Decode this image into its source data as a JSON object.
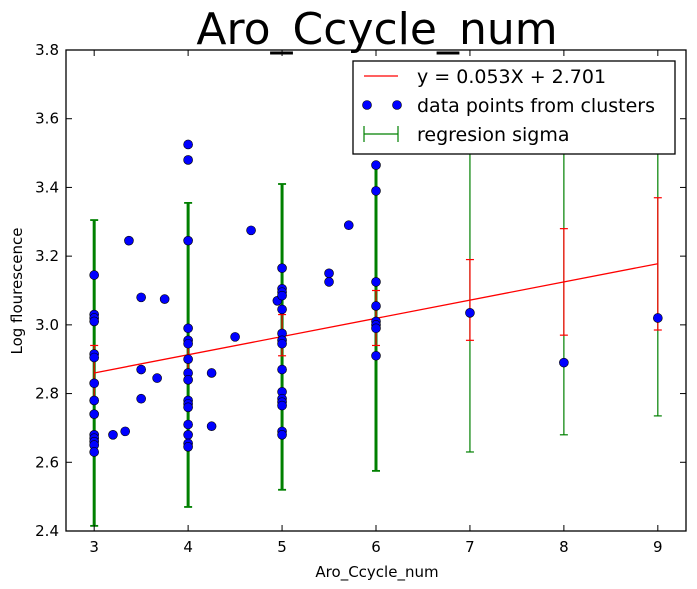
{
  "chart_data": {
    "type": "scatter",
    "title": "Aro_Ccycle_num",
    "xlabel": "Aro_Ccycle_num",
    "ylabel": "Log flourescence",
    "xlim": [
      2.7,
      9.3
    ],
    "ylim": [
      2.4,
      3.8
    ],
    "xticks": [
      "3",
      "4",
      "5",
      "6",
      "7",
      "8",
      "9"
    ],
    "yticks": [
      "2.4",
      "2.6",
      "2.8",
      "3.0",
      "3.2",
      "3.4",
      "3.6",
      "3.8"
    ],
    "grid": false,
    "legend_position": "top-right",
    "legend": {
      "fit_label": "y = 0.053X + 2.701",
      "points_label": "data points from clusters",
      "sigma_label": "regresion sigma"
    },
    "colors": {
      "fit": "#ff0000",
      "points": "#0000ff",
      "sigma": "#008000"
    },
    "regression": {
      "slope": 0.053,
      "intercept": 2.701,
      "x_range": [
        3,
        9
      ]
    },
    "regression_error": [
      {
        "x": 3,
        "low": 2.78,
        "high": 2.94
      },
      {
        "x": 4,
        "low": 2.86,
        "high": 2.96
      },
      {
        "x": 5,
        "low": 2.91,
        "high": 3.03
      },
      {
        "x": 6,
        "low": 2.94,
        "high": 3.1
      },
      {
        "x": 7,
        "low": 2.955,
        "high": 3.19
      },
      {
        "x": 8,
        "low": 2.97,
        "high": 3.28
      },
      {
        "x": 9,
        "low": 2.985,
        "high": 3.37
      }
    ],
    "sigma_bars": [
      {
        "x": 3,
        "low": 2.415,
        "high": 3.305,
        "thick": true
      },
      {
        "x": 4,
        "low": 2.47,
        "high": 3.355,
        "thick": true
      },
      {
        "x": 5,
        "low": 2.52,
        "high": 3.41,
        "thick": true
      },
      {
        "x": 6,
        "low": 2.575,
        "high": 3.465,
        "thick": true
      },
      {
        "x": 7,
        "low": 2.63,
        "high": 3.52,
        "thick": false
      },
      {
        "x": 8,
        "low": 2.68,
        "high": 3.57,
        "thick": false
      },
      {
        "x": 9,
        "low": 2.735,
        "high": 3.625,
        "thick": false
      }
    ],
    "points": [
      {
        "x": 3,
        "y": 3.145
      },
      {
        "x": 3,
        "y": 3.03
      },
      {
        "x": 3,
        "y": 3.02
      },
      {
        "x": 3,
        "y": 3.01
      },
      {
        "x": 3,
        "y": 2.915
      },
      {
        "x": 3,
        "y": 2.905
      },
      {
        "x": 3,
        "y": 2.83
      },
      {
        "x": 3,
        "y": 2.78
      },
      {
        "x": 3,
        "y": 2.74
      },
      {
        "x": 3,
        "y": 2.68
      },
      {
        "x": 3,
        "y": 2.67
      },
      {
        "x": 3,
        "y": 2.66
      },
      {
        "x": 3,
        "y": 2.65
      },
      {
        "x": 3,
        "y": 2.63
      },
      {
        "x": 3.2,
        "y": 2.68
      },
      {
        "x": 3.33,
        "y": 2.69
      },
      {
        "x": 3.37,
        "y": 3.245
      },
      {
        "x": 3.5,
        "y": 3.08
      },
      {
        "x": 3.5,
        "y": 2.87
      },
      {
        "x": 3.5,
        "y": 2.785
      },
      {
        "x": 3.67,
        "y": 2.845
      },
      {
        "x": 3.75,
        "y": 3.075
      },
      {
        "x": 4,
        "y": 3.525
      },
      {
        "x": 4,
        "y": 3.48
      },
      {
        "x": 4,
        "y": 3.245
      },
      {
        "x": 4,
        "y": 2.99
      },
      {
        "x": 4,
        "y": 2.955
      },
      {
        "x": 4,
        "y": 2.945
      },
      {
        "x": 4,
        "y": 2.9
      },
      {
        "x": 4,
        "y": 2.86
      },
      {
        "x": 4,
        "y": 2.84
      },
      {
        "x": 4,
        "y": 2.78
      },
      {
        "x": 4,
        "y": 2.77
      },
      {
        "x": 4,
        "y": 2.76
      },
      {
        "x": 4,
        "y": 2.71
      },
      {
        "x": 4,
        "y": 2.68
      },
      {
        "x": 4,
        "y": 2.655
      },
      {
        "x": 4,
        "y": 2.645
      },
      {
        "x": 4.25,
        "y": 2.86
      },
      {
        "x": 4.25,
        "y": 2.705
      },
      {
        "x": 4.5,
        "y": 2.965
      },
      {
        "x": 4.67,
        "y": 3.275
      },
      {
        "x": 4.95,
        "y": 3.07
      },
      {
        "x": 5,
        "y": 3.165
      },
      {
        "x": 5,
        "y": 3.105
      },
      {
        "x": 5,
        "y": 3.095
      },
      {
        "x": 5,
        "y": 3.085
      },
      {
        "x": 5,
        "y": 3.045
      },
      {
        "x": 5,
        "y": 2.975
      },
      {
        "x": 5,
        "y": 2.955
      },
      {
        "x": 5,
        "y": 2.945
      },
      {
        "x": 5,
        "y": 2.87
      },
      {
        "x": 5,
        "y": 2.805
      },
      {
        "x": 5,
        "y": 2.785
      },
      {
        "x": 5,
        "y": 2.775
      },
      {
        "x": 5,
        "y": 2.765
      },
      {
        "x": 5,
        "y": 2.69
      },
      {
        "x": 5,
        "y": 2.68
      },
      {
        "x": 5.5,
        "y": 3.15
      },
      {
        "x": 5.5,
        "y": 3.125
      },
      {
        "x": 5.71,
        "y": 3.29
      },
      {
        "x": 6,
        "y": 3.465
      },
      {
        "x": 6,
        "y": 3.39
      },
      {
        "x": 6,
        "y": 3.125
      },
      {
        "x": 6,
        "y": 3.055
      },
      {
        "x": 6,
        "y": 3.01
      },
      {
        "x": 6,
        "y": 3.0
      },
      {
        "x": 6,
        "y": 2.99
      },
      {
        "x": 6,
        "y": 2.91
      },
      {
        "x": 7,
        "y": 3.035
      },
      {
        "x": 8,
        "y": 2.89
      },
      {
        "x": 9,
        "y": 3.02
      }
    ]
  }
}
